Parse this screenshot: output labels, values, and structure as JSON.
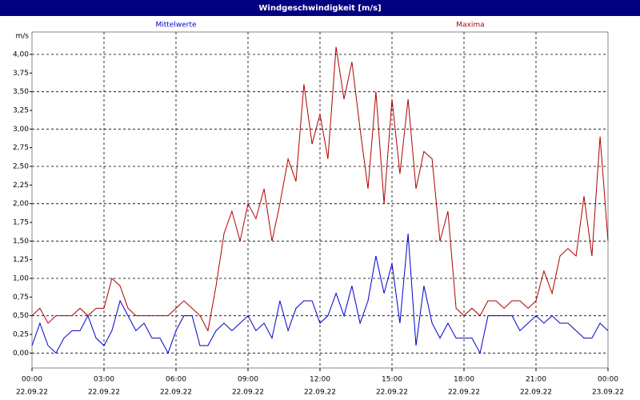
{
  "chart_data": {
    "type": "line",
    "title": "Windgeschwindigkeit [m/s]",
    "y_label": "m/s",
    "x": [
      0,
      0.33,
      0.67,
      1,
      1.33,
      1.67,
      2,
      2.33,
      2.67,
      3,
      3.33,
      3.67,
      4,
      4.33,
      4.67,
      5,
      5.33,
      5.67,
      6,
      6.33,
      6.67,
      7,
      7.33,
      7.67,
      8,
      8.33,
      8.67,
      9,
      9.33,
      9.67,
      10,
      10.33,
      10.67,
      11,
      11.33,
      11.67,
      12,
      12.33,
      12.67,
      13,
      13.33,
      13.67,
      14,
      14.33,
      14.67,
      15,
      15.33,
      15.67,
      16,
      16.33,
      16.67,
      17,
      17.33,
      17.67,
      18,
      18.33,
      18.67,
      19,
      19.33,
      19.67,
      20,
      20.33,
      20.67,
      21,
      21.33,
      21.67,
      22,
      22.33,
      22.67,
      23,
      23.33,
      23.67,
      24
    ],
    "series": [
      {
        "name": "Mittelwerte",
        "color": "#0000cc",
        "values": [
          0.1,
          0.4,
          0.1,
          0.0,
          0.2,
          0.3,
          0.3,
          0.5,
          0.2,
          0.1,
          0.3,
          0.7,
          0.5,
          0.3,
          0.4,
          0.2,
          0.2,
          0.0,
          0.3,
          0.5,
          0.5,
          0.1,
          0.1,
          0.3,
          0.4,
          0.3,
          0.4,
          0.5,
          0.3,
          0.4,
          0.2,
          0.7,
          0.3,
          0.6,
          0.7,
          0.7,
          0.4,
          0.5,
          0.8,
          0.5,
          0.9,
          0.4,
          0.7,
          1.3,
          0.8,
          1.2,
          0.4,
          1.6,
          0.1,
          0.9,
          0.4,
          0.2,
          0.4,
          0.2,
          0.2,
          0.2,
          0.0,
          0.5,
          0.5,
          0.5,
          0.5,
          0.3,
          0.4,
          0.5,
          0.4,
          0.5,
          0.4,
          0.4,
          0.3,
          0.2,
          0.2,
          0.4,
          0.3
        ]
      },
      {
        "name": "Maxima",
        "color": "#b00000",
        "values": [
          0.5,
          0.6,
          0.4,
          0.5,
          0.5,
          0.5,
          0.6,
          0.5,
          0.6,
          0.6,
          1.0,
          0.9,
          0.6,
          0.5,
          0.5,
          0.5,
          0.5,
          0.5,
          0.6,
          0.7,
          0.6,
          0.5,
          0.3,
          0.9,
          1.6,
          1.9,
          1.5,
          2.0,
          1.8,
          2.2,
          1.5,
          2.0,
          2.6,
          2.3,
          3.6,
          2.8,
          3.2,
          2.6,
          4.1,
          3.4,
          3.9,
          3.0,
          2.2,
          3.5,
          2.0,
          3.4,
          2.4,
          3.4,
          2.2,
          2.7,
          2.6,
          1.5,
          1.9,
          0.6,
          0.5,
          0.6,
          0.5,
          0.7,
          0.7,
          0.6,
          0.7,
          0.7,
          0.6,
          0.7,
          1.1,
          0.8,
          1.3,
          1.4,
          1.3,
          2.1,
          1.3,
          2.9,
          1.5
        ]
      }
    ],
    "xlim": [
      0,
      24
    ],
    "xticks": [
      {
        "value": 0,
        "label": "00:00"
      },
      {
        "value": 3,
        "label": "03:00"
      },
      {
        "value": 6,
        "label": "06:00"
      },
      {
        "value": 9,
        "label": "09:00"
      },
      {
        "value": 12,
        "label": "12:00"
      },
      {
        "value": 15,
        "label": "15:00"
      },
      {
        "value": 18,
        "label": "18:00"
      },
      {
        "value": 21,
        "label": "21:00"
      },
      {
        "value": 24,
        "label": "00:00"
      }
    ],
    "xtick_dates": [
      "22.09.22",
      "22.09.22",
      "22.09.22",
      "22.09.22",
      "22.09.22",
      "22.09.22",
      "22.09.22",
      "22.09.22",
      "23.09.22"
    ],
    "ylim": [
      -0.2,
      4.3
    ],
    "yticks": [
      {
        "value": 0,
        "label": "0,00"
      },
      {
        "value": 0.25,
        "label": "0,25"
      },
      {
        "value": 0.5,
        "label": "0,50"
      },
      {
        "value": 0.75,
        "label": "0,75"
      },
      {
        "value": 1,
        "label": "1,00"
      },
      {
        "value": 1.25,
        "label": "1,25"
      },
      {
        "value": 1.5,
        "label": "1,50"
      },
      {
        "value": 1.75,
        "label": "1,75"
      },
      {
        "value": 2,
        "label": "2,00"
      },
      {
        "value": 2.25,
        "label": "2,25"
      },
      {
        "value": 2.5,
        "label": "2,50"
      },
      {
        "value": 2.75,
        "label": "2,75"
      },
      {
        "value": 3,
        "label": "3,00"
      },
      {
        "value": 3.25,
        "label": "3,25"
      },
      {
        "value": 3.5,
        "label": "3,50"
      },
      {
        "value": 3.75,
        "label": "3,75"
      },
      {
        "value": 4,
        "label": "4,00"
      }
    ],
    "ygrid": [
      0,
      0.5,
      1,
      1.5,
      2,
      2.5,
      3,
      3.5,
      4
    ],
    "grid": true
  }
}
